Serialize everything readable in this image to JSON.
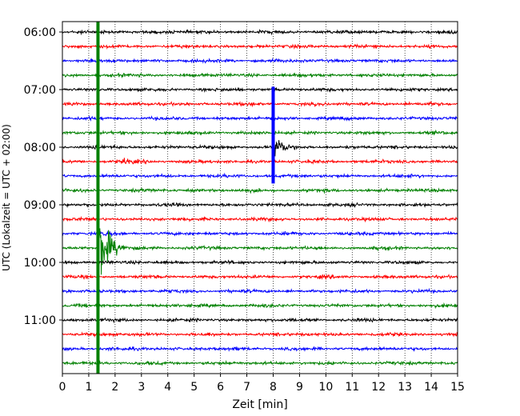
{
  "chart_data": {
    "type": "line",
    "chart_kind": "helicorder",
    "xlabel": "Zeit  [min]",
    "ylabel": "UTC (Lokalzeit = UTC + 02:00)",
    "xlim": [
      0,
      15
    ],
    "x_ticks": [
      "0",
      "1",
      "2",
      "3",
      "4",
      "5",
      "6",
      "7",
      "8",
      "9",
      "10",
      "11",
      "12",
      "13",
      "14",
      "15"
    ],
    "y_ticks": [
      "06:00",
      "07:00",
      "08:00",
      "09:00",
      "10:00",
      "11:00"
    ],
    "grid": "vertical dotted at each minute",
    "trace_start_times": [
      "06:00",
      "06:15",
      "06:30",
      "06:45",
      "07:00",
      "07:15",
      "07:30",
      "07:45",
      "08:00",
      "08:15",
      "08:30",
      "08:45",
      "09:00",
      "09:15",
      "09:30",
      "09:45",
      "10:00",
      "10:15",
      "10:30",
      "10:45",
      "11:00",
      "11:15",
      "11:30",
      "11:45"
    ],
    "trace_colors": [
      "#000000",
      "#ff0000",
      "#0000ff",
      "#008000"
    ],
    "events": [
      {
        "trace": 8,
        "minute": 8.0,
        "amplitude": 4.2,
        "color": "#0000ff"
      },
      {
        "trace": 9,
        "minute": 2.3,
        "amplitude": 0.9,
        "color": "#ff0000"
      },
      {
        "trace": 15,
        "minute": 1.35,
        "amplitude": 22,
        "color": "#008000"
      }
    ]
  }
}
